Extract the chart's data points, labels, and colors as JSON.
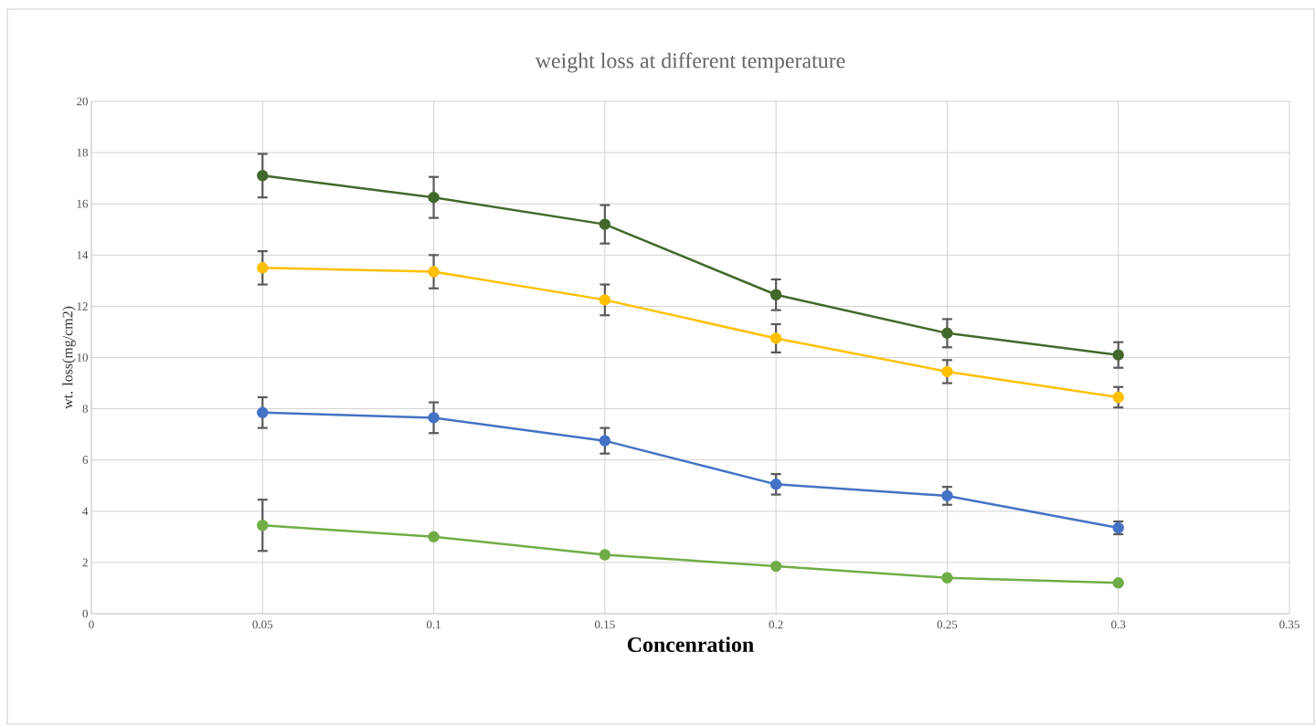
{
  "chart_data": {
    "type": "line",
    "title": "weight loss at different temperature",
    "xlabel": "Concenration",
    "ylabel": "wt. loss(mg/cm2)",
    "x": [
      0.05,
      0.1,
      0.15,
      0.2,
      0.25,
      0.3
    ],
    "series": [
      {
        "color": "#43682b",
        "values": [
          17.1,
          16.25,
          15.2,
          12.45,
          10.95,
          10.1
        ],
        "errors": [
          0.85,
          0.8,
          0.75,
          0.6,
          0.55,
          0.5
        ]
      },
      {
        "color": "#ffc000",
        "values": [
          13.5,
          13.35,
          12.25,
          10.75,
          9.45,
          8.45
        ],
        "errors": [
          0.65,
          0.65,
          0.6,
          0.55,
          0.45,
          0.4
        ]
      },
      {
        "color": "#4472c4",
        "values": [
          7.85,
          7.65,
          6.75,
          5.05,
          4.6,
          3.35
        ],
        "errors": [
          0.6,
          0.6,
          0.5,
          0.4,
          0.35,
          0.25
        ]
      },
      {
        "color": "#70ad47",
        "values": [
          3.45,
          3.0,
          2.3,
          1.85,
          1.4,
          1.2
        ],
        "errors": [
          1.0,
          null,
          null,
          null,
          null,
          null
        ]
      }
    ],
    "xlim": [
      0,
      0.35
    ],
    "xticks": [
      0,
      0.05,
      0.1,
      0.15,
      0.2,
      0.25,
      0.3,
      0.35
    ],
    "ylim": [
      0,
      20
    ],
    "yticks": [
      0,
      2,
      4,
      6,
      8,
      10,
      12,
      14,
      16,
      18,
      20
    ],
    "grid": true,
    "marker": "circle",
    "legend": false
  }
}
